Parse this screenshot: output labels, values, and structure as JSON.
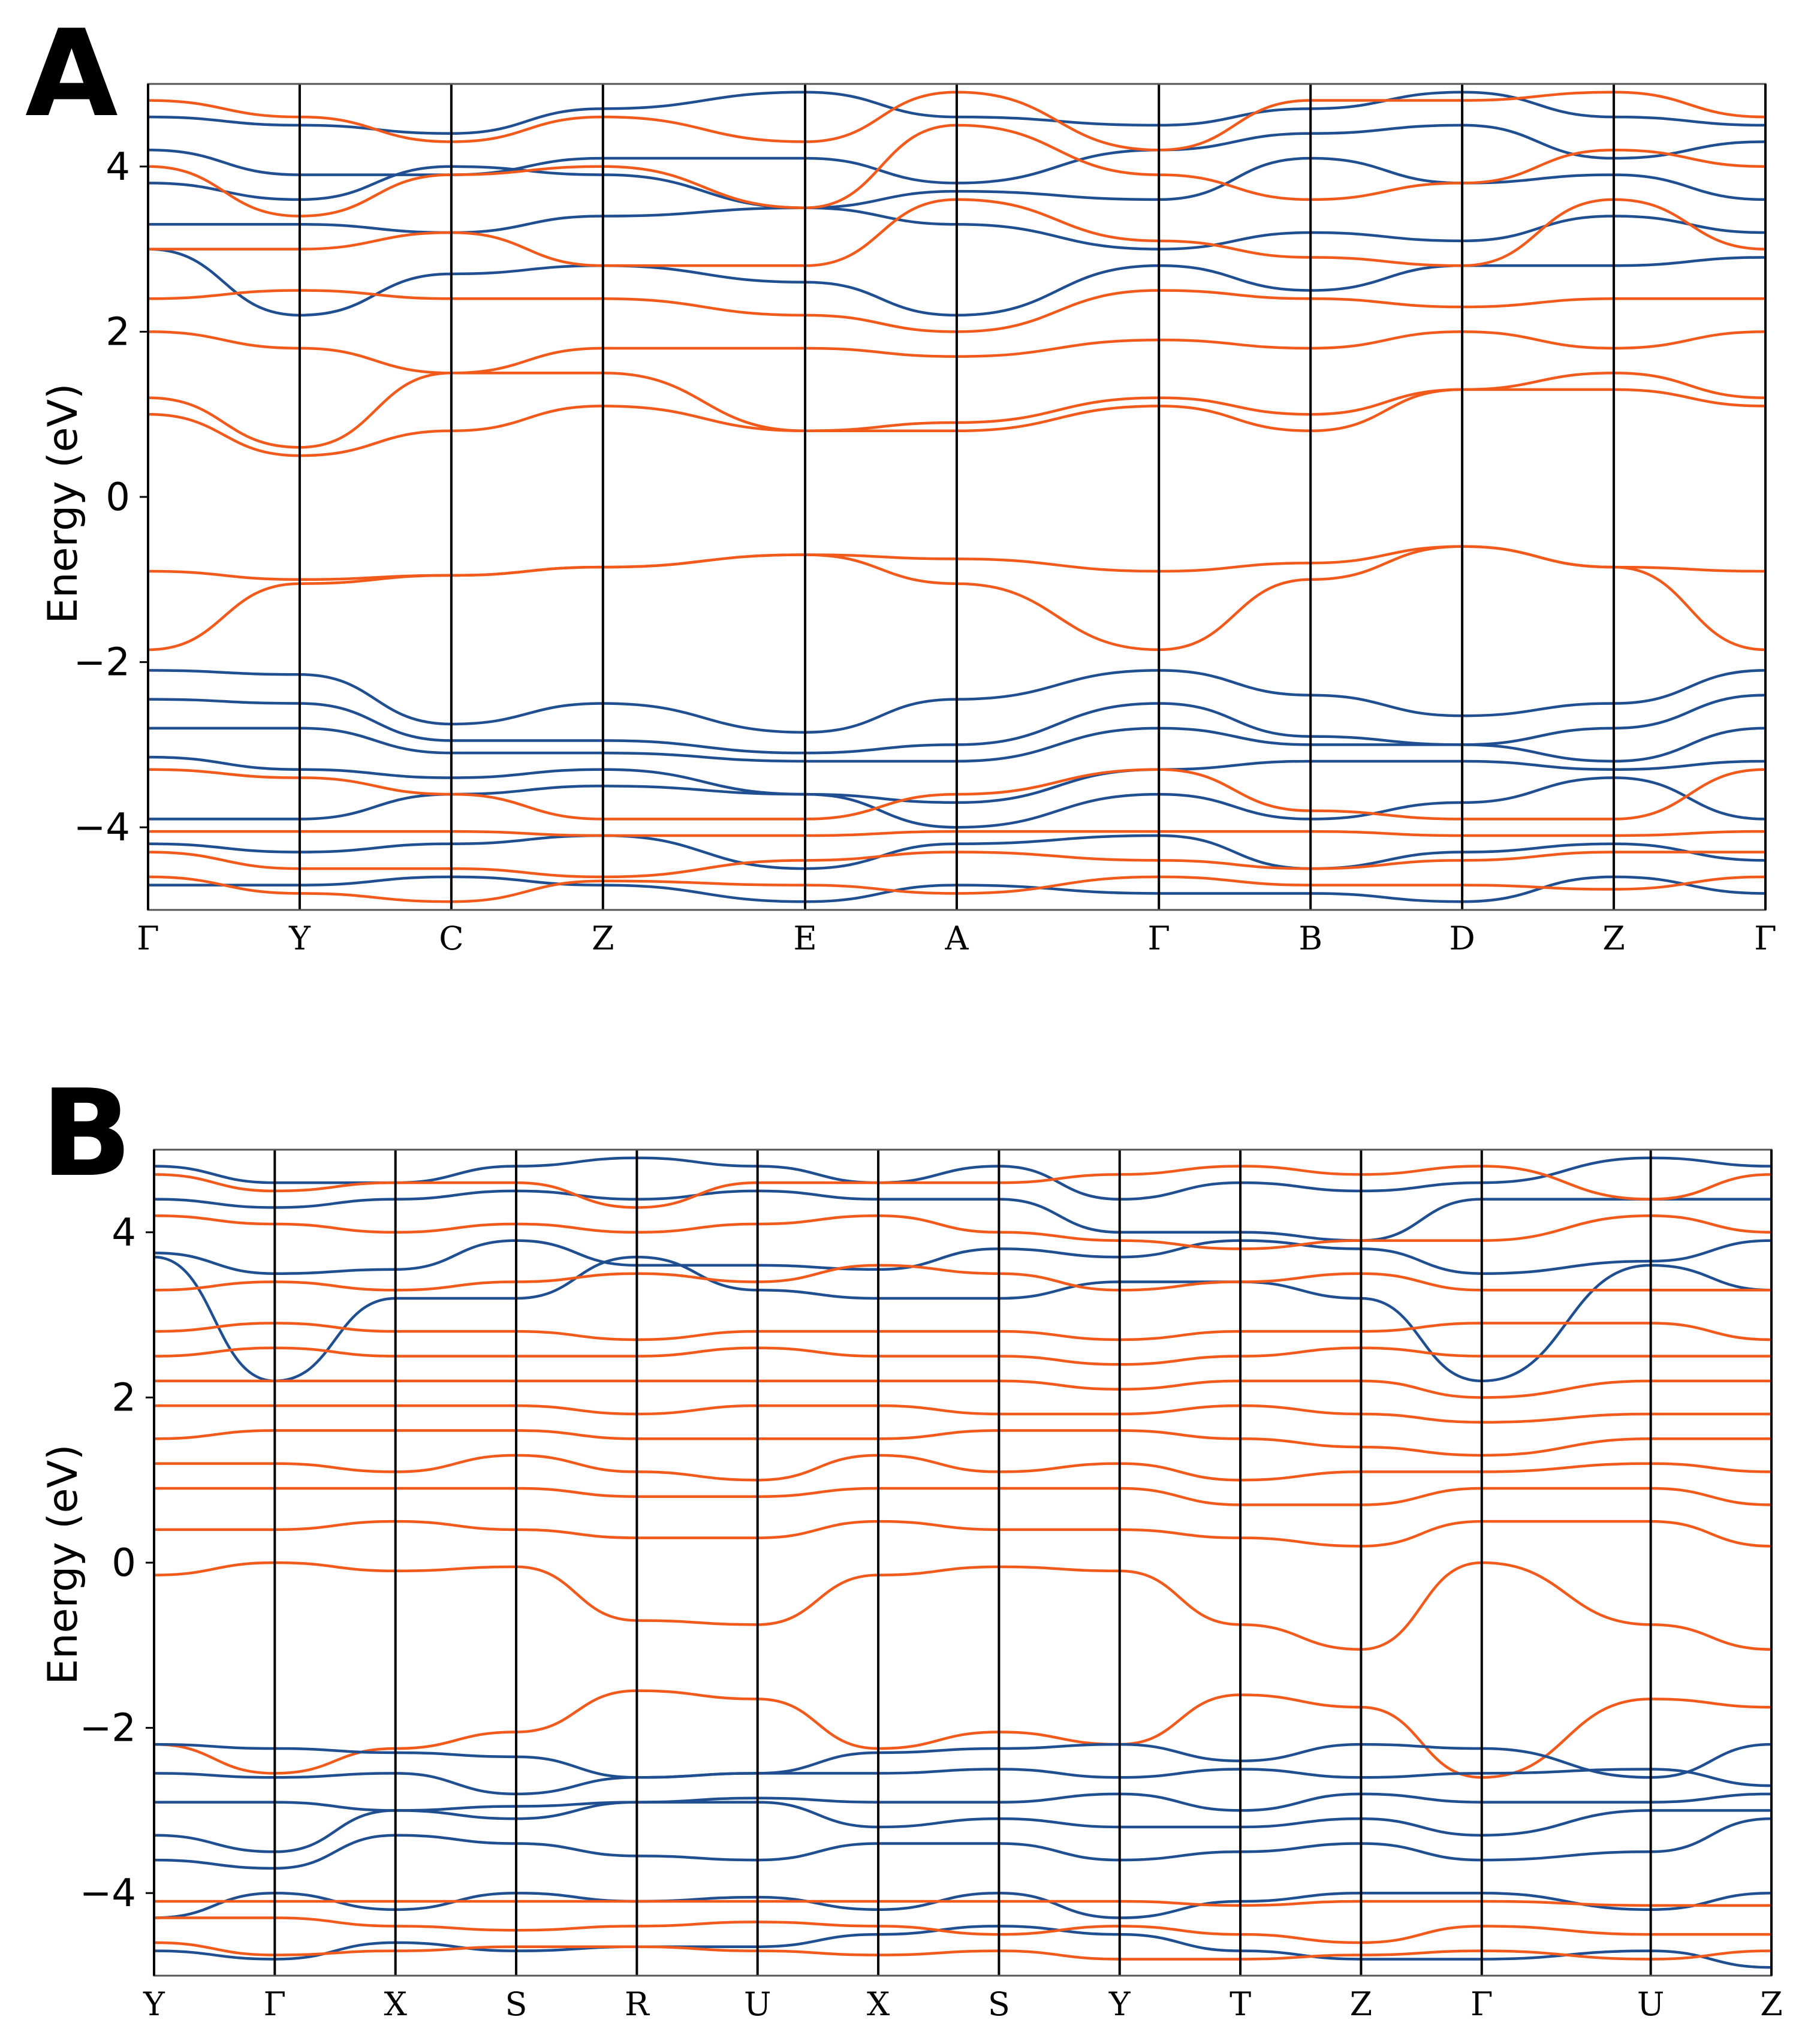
{
  "chart_data": [
    {
      "type": "line",
      "panel_label": "A",
      "ylabel": "Energy (eV)",
      "xlabel": "",
      "ylim": [
        -5,
        5
      ],
      "yticks": [
        -4,
        -2,
        0,
        2,
        4
      ],
      "ytick_labels": [
        "−4",
        "−2",
        "0",
        "2",
        "4"
      ],
      "kpoints": [
        "Γ",
        "Y",
        "C",
        "Z",
        "E",
        "A",
        "Γ",
        "B",
        "D",
        "Z",
        "Γ"
      ],
      "kpoint_x": [
        0,
        0.6,
        1.2,
        1.8,
        2.6,
        3.2,
        4.0,
        4.6,
        5.2,
        5.8,
        6.4
      ],
      "series_colors": {
        "valence": "#1f4f91",
        "conduction": "#f25a1c"
      },
      "series": [
        {
          "name": "band",
          "color": "#1f4f91",
          "values": [
            4.6,
            4.5,
            4.4,
            4.7,
            4.9,
            4.6,
            4.5,
            4.7,
            4.9,
            4.6,
            4.5
          ]
        },
        {
          "name": "band",
          "color": "#1f4f91",
          "values": [
            4.2,
            3.9,
            3.9,
            4.1,
            4.1,
            3.8,
            4.2,
            4.4,
            4.5,
            4.1,
            4.3
          ]
        },
        {
          "name": "band",
          "color": "#1f4f91",
          "values": [
            3.8,
            3.6,
            4.0,
            3.9,
            3.5,
            3.7,
            3.6,
            4.1,
            3.8,
            3.9,
            3.6
          ]
        },
        {
          "name": "band",
          "color": "#1f4f91",
          "values": [
            3.3,
            3.3,
            3.2,
            3.4,
            3.5,
            3.3,
            3.0,
            3.2,
            3.1,
            3.4,
            3.2
          ]
        },
        {
          "name": "band",
          "color": "#1f4f91",
          "values": [
            3.0,
            2.2,
            2.7,
            2.8,
            2.6,
            2.2,
            2.8,
            2.5,
            2.8,
            2.8,
            2.9
          ]
        },
        {
          "name": "band",
          "color": "#f25a1c",
          "values": [
            4.8,
            4.6,
            4.3,
            4.6,
            4.3,
            4.9,
            4.2,
            4.8,
            4.8,
            4.9,
            4.6
          ]
        },
        {
          "name": "band",
          "color": "#f25a1c",
          "values": [
            4.0,
            3.4,
            3.9,
            4.0,
            3.5,
            4.5,
            3.9,
            3.6,
            3.8,
            4.2,
            4.0
          ]
        },
        {
          "name": "band",
          "color": "#f25a1c",
          "values": [
            3.0,
            3.0,
            3.2,
            2.8,
            2.8,
            3.6,
            3.1,
            2.9,
            2.8,
            3.6,
            3.0
          ]
        },
        {
          "name": "band",
          "color": "#f25a1c",
          "values": [
            2.4,
            2.5,
            2.4,
            2.4,
            2.2,
            2.0,
            2.5,
            2.4,
            2.3,
            2.4,
            2.4
          ]
        },
        {
          "name": "band",
          "color": "#f25a1c",
          "values": [
            2.0,
            1.8,
            1.5,
            1.8,
            1.8,
            1.7,
            1.9,
            1.8,
            2.0,
            1.8,
            2.0
          ]
        },
        {
          "name": "band",
          "color": "#f25a1c",
          "values": [
            1.2,
            0.6,
            1.5,
            1.5,
            0.8,
            0.9,
            1.2,
            1.0,
            1.3,
            1.5,
            1.2
          ]
        },
        {
          "name": "band",
          "color": "#f25a1c",
          "values": [
            1.0,
            0.5,
            0.8,
            1.1,
            0.8,
            0.8,
            1.1,
            0.8,
            1.3,
            1.3,
            1.1
          ]
        },
        {
          "name": "band",
          "color": "#f25a1c",
          "values": [
            -0.9,
            -1.0,
            -0.95,
            -0.85,
            -0.7,
            -0.75,
            -0.9,
            -0.8,
            -0.6,
            -0.85,
            -0.9
          ]
        },
        {
          "name": "band",
          "color": "#f25a1c",
          "values": [
            -1.85,
            -1.05,
            -0.95,
            -0.85,
            -0.7,
            -1.05,
            -1.85,
            -1.0,
            -0.6,
            -0.85,
            -1.85
          ]
        },
        {
          "name": "band",
          "color": "#1f4f91",
          "values": [
            -2.1,
            -2.15,
            -2.75,
            -2.5,
            -2.85,
            -2.45,
            -2.1,
            -2.4,
            -2.65,
            -2.5,
            -2.1
          ]
        },
        {
          "name": "band",
          "color": "#1f4f91",
          "values": [
            -2.45,
            -2.5,
            -2.95,
            -2.95,
            -3.1,
            -3.0,
            -2.5,
            -2.9,
            -3.0,
            -2.8,
            -2.4
          ]
        },
        {
          "name": "band",
          "color": "#1f4f91",
          "values": [
            -2.8,
            -2.8,
            -3.1,
            -3.1,
            -3.2,
            -3.2,
            -2.8,
            -3.0,
            -3.0,
            -3.2,
            -2.8
          ]
        },
        {
          "name": "band",
          "color": "#1f4f91",
          "values": [
            -3.15,
            -3.3,
            -3.4,
            -3.3,
            -3.6,
            -3.7,
            -3.3,
            -3.2,
            -3.2,
            -3.3,
            -3.2
          ]
        },
        {
          "name": "band",
          "color": "#1f4f91",
          "values": [
            -3.9,
            -3.9,
            -3.6,
            -3.5,
            -3.6,
            -4.0,
            -3.6,
            -3.9,
            -3.7,
            -3.4,
            -3.9
          ]
        },
        {
          "name": "band",
          "color": "#1f4f91",
          "values": [
            -4.2,
            -4.3,
            -4.2,
            -4.1,
            -4.5,
            -4.2,
            -4.1,
            -4.5,
            -4.3,
            -4.2,
            -4.4
          ]
        },
        {
          "name": "band",
          "color": "#1f4f91",
          "values": [
            -4.7,
            -4.7,
            -4.6,
            -4.7,
            -4.9,
            -4.7,
            -4.8,
            -4.8,
            -4.9,
            -4.6,
            -4.8
          ]
        },
        {
          "name": "band",
          "color": "#f25a1c",
          "values": [
            -3.3,
            -3.4,
            -3.6,
            -3.9,
            -3.9,
            -3.6,
            -3.3,
            -3.8,
            -3.9,
            -3.9,
            -3.3
          ]
        },
        {
          "name": "band",
          "color": "#f25a1c",
          "values": [
            -4.05,
            -4.05,
            -4.05,
            -4.1,
            -4.1,
            -4.05,
            -4.05,
            -4.05,
            -4.1,
            -4.1,
            -4.05
          ]
        },
        {
          "name": "band",
          "color": "#f25a1c",
          "values": [
            -4.3,
            -4.5,
            -4.5,
            -4.6,
            -4.4,
            -4.3,
            -4.4,
            -4.5,
            -4.4,
            -4.3,
            -4.3
          ]
        },
        {
          "name": "band",
          "color": "#f25a1c",
          "values": [
            -4.6,
            -4.8,
            -4.9,
            -4.65,
            -4.7,
            -4.8,
            -4.6,
            -4.7,
            -4.7,
            -4.75,
            -4.6
          ]
        }
      ]
    },
    {
      "type": "line",
      "panel_label": "B",
      "ylabel": "Energy (eV)",
      "xlabel": "",
      "ylim": [
        -5,
        5
      ],
      "yticks": [
        -4,
        -2,
        0,
        2,
        4
      ],
      "ytick_labels": [
        "−4",
        "−2",
        "0",
        "2",
        "4"
      ],
      "kpoints": [
        "Y",
        "Γ",
        "X",
        "S",
        "R",
        "U",
        "X",
        "S",
        "Y",
        "T",
        "Z",
        "Γ",
        "U",
        "Z"
      ],
      "kpoint_x": [
        0,
        0.5,
        1.0,
        1.5,
        2.0,
        2.5,
        3.0,
        3.5,
        4.0,
        4.5,
        5.0,
        5.5,
        6.2,
        6.7
      ],
      "series_colors": {
        "valence": "#1f4f91",
        "conduction": "#f25a1c"
      },
      "series": [
        {
          "name": "band",
          "color": "#1f4f91",
          "values": [
            4.8,
            4.6,
            4.6,
            4.8,
            4.9,
            4.8,
            4.6,
            4.8,
            4.4,
            4.6,
            4.5,
            4.6,
            4.9,
            4.8
          ]
        },
        {
          "name": "band",
          "color": "#1f4f91",
          "values": [
            4.4,
            4.3,
            4.4,
            4.5,
            4.4,
            4.5,
            4.4,
            4.4,
            4.0,
            4.0,
            3.9,
            4.4,
            4.4,
            4.4
          ]
        },
        {
          "name": "band",
          "color": "#1f4f91",
          "values": [
            3.75,
            3.5,
            3.55,
            3.9,
            3.6,
            3.6,
            3.55,
            3.8,
            3.7,
            3.9,
            3.8,
            3.5,
            3.65,
            3.9
          ]
        },
        {
          "name": "band",
          "color": "#1f4f91",
          "values": [
            3.7,
            2.2,
            3.2,
            3.2,
            3.7,
            3.3,
            3.2,
            3.2,
            3.4,
            3.4,
            3.2,
            2.2,
            3.6,
            3.3
          ]
        },
        {
          "name": "band",
          "color": "#f25a1c",
          "values": [
            4.7,
            4.5,
            4.6,
            4.6,
            4.3,
            4.6,
            4.6,
            4.6,
            4.7,
            4.8,
            4.7,
            4.8,
            4.4,
            4.7
          ]
        },
        {
          "name": "band",
          "color": "#f25a1c",
          "values": [
            4.2,
            4.1,
            4.0,
            4.1,
            4.0,
            4.1,
            4.2,
            4.0,
            3.9,
            3.8,
            3.9,
            3.9,
            4.2,
            4.0
          ]
        },
        {
          "name": "band",
          "color": "#f25a1c",
          "values": [
            3.3,
            3.4,
            3.3,
            3.4,
            3.5,
            3.4,
            3.6,
            3.5,
            3.3,
            3.4,
            3.5,
            3.3,
            3.3,
            3.3
          ]
        },
        {
          "name": "band",
          "color": "#f25a1c",
          "values": [
            2.8,
            2.9,
            2.8,
            2.8,
            2.7,
            2.8,
            2.8,
            2.8,
            2.7,
            2.8,
            2.8,
            2.9,
            2.9,
            2.7
          ]
        },
        {
          "name": "band",
          "color": "#f25a1c",
          "values": [
            2.5,
            2.6,
            2.5,
            2.5,
            2.5,
            2.6,
            2.5,
            2.5,
            2.4,
            2.5,
            2.6,
            2.5,
            2.5,
            2.5
          ]
        },
        {
          "name": "band",
          "color": "#f25a1c",
          "values": [
            2.2,
            2.2,
            2.2,
            2.2,
            2.2,
            2.2,
            2.2,
            2.2,
            2.1,
            2.2,
            2.2,
            2.0,
            2.2,
            2.2
          ]
        },
        {
          "name": "band",
          "color": "#f25a1c",
          "values": [
            1.9,
            1.9,
            1.9,
            1.9,
            1.8,
            1.9,
            1.9,
            1.8,
            1.8,
            1.9,
            1.8,
            1.7,
            1.8,
            1.8
          ]
        },
        {
          "name": "band",
          "color": "#f25a1c",
          "values": [
            1.5,
            1.6,
            1.6,
            1.6,
            1.5,
            1.5,
            1.5,
            1.6,
            1.6,
            1.5,
            1.4,
            1.3,
            1.5,
            1.5
          ]
        },
        {
          "name": "band",
          "color": "#f25a1c",
          "values": [
            1.2,
            1.2,
            1.1,
            1.3,
            1.1,
            1.0,
            1.3,
            1.1,
            1.2,
            1.0,
            1.1,
            1.1,
            1.2,
            1.1
          ]
        },
        {
          "name": "band",
          "color": "#f25a1c",
          "values": [
            0.9,
            0.9,
            0.9,
            0.9,
            0.8,
            0.8,
            0.9,
            0.9,
            0.9,
            0.7,
            0.7,
            0.9,
            0.9,
            0.7
          ]
        },
        {
          "name": "band",
          "color": "#f25a1c",
          "values": [
            0.4,
            0.4,
            0.5,
            0.4,
            0.3,
            0.3,
            0.5,
            0.4,
            0.4,
            0.3,
            0.2,
            0.5,
            0.5,
            0.2
          ]
        },
        {
          "name": "band",
          "color": "#f25a1c",
          "values": [
            -0.15,
            0.0,
            -0.1,
            -0.05,
            -0.7,
            -0.75,
            -0.15,
            -0.05,
            -0.1,
            -0.75,
            -1.05,
            0.0,
            -0.75,
            -1.05
          ]
        },
        {
          "name": "band",
          "color": "#f25a1c",
          "values": [
            -2.2,
            -2.55,
            -2.25,
            -2.05,
            -1.55,
            -1.65,
            -2.25,
            -2.05,
            -2.2,
            -1.6,
            -1.75,
            -2.6,
            -1.65,
            -1.75
          ]
        },
        {
          "name": "band",
          "color": "#1f4f91",
          "values": [
            -2.2,
            -2.25,
            -2.3,
            -2.35,
            -2.6,
            -2.55,
            -2.3,
            -2.25,
            -2.2,
            -2.4,
            -2.2,
            -2.25,
            -2.6,
            -2.2
          ]
        },
        {
          "name": "band",
          "color": "#1f4f91",
          "values": [
            -2.55,
            -2.6,
            -2.55,
            -2.8,
            -2.6,
            -2.55,
            -2.55,
            -2.5,
            -2.6,
            -2.5,
            -2.6,
            -2.55,
            -2.5,
            -2.7
          ]
        },
        {
          "name": "band",
          "color": "#1f4f91",
          "values": [
            -2.9,
            -2.9,
            -3.0,
            -2.95,
            -2.9,
            -2.85,
            -2.9,
            -2.9,
            -2.8,
            -3.0,
            -2.8,
            -2.9,
            -2.9,
            -2.8
          ]
        },
        {
          "name": "band",
          "color": "#1f4f91",
          "values": [
            -3.3,
            -3.5,
            -3.0,
            -3.1,
            -2.9,
            -2.9,
            -3.2,
            -3.1,
            -3.2,
            -3.2,
            -3.1,
            -3.3,
            -3.0,
            -3.0
          ]
        },
        {
          "name": "band",
          "color": "#1f4f91",
          "values": [
            -3.6,
            -3.7,
            -3.3,
            -3.4,
            -3.55,
            -3.6,
            -3.4,
            -3.4,
            -3.6,
            -3.5,
            -3.4,
            -3.6,
            -3.5,
            -3.1
          ]
        },
        {
          "name": "band",
          "color": "#1f4f91",
          "values": [
            -4.3,
            -4.0,
            -4.2,
            -4.0,
            -4.1,
            -4.05,
            -4.2,
            -4.0,
            -4.3,
            -4.1,
            -4.0,
            -4.0,
            -4.2,
            -4.0
          ]
        },
        {
          "name": "band",
          "color": "#1f4f91",
          "values": [
            -4.7,
            -4.8,
            -4.6,
            -4.7,
            -4.65,
            -4.65,
            -4.5,
            -4.4,
            -4.5,
            -4.7,
            -4.8,
            -4.8,
            -4.7,
            -4.9
          ]
        },
        {
          "name": "band",
          "color": "#f25a1c",
          "values": [
            -4.1,
            -4.1,
            -4.1,
            -4.1,
            -4.1,
            -4.1,
            -4.1,
            -4.1,
            -4.1,
            -4.15,
            -4.1,
            -4.1,
            -4.15,
            -4.15
          ]
        },
        {
          "name": "band",
          "color": "#f25a1c",
          "values": [
            -4.3,
            -4.3,
            -4.4,
            -4.45,
            -4.4,
            -4.35,
            -4.4,
            -4.5,
            -4.4,
            -4.5,
            -4.6,
            -4.4,
            -4.5,
            -4.5
          ]
        },
        {
          "name": "band",
          "color": "#f25a1c",
          "values": [
            -4.6,
            -4.75,
            -4.7,
            -4.65,
            -4.65,
            -4.7,
            -4.75,
            -4.7,
            -4.8,
            -4.8,
            -4.75,
            -4.7,
            -4.8,
            -4.7
          ]
        }
      ]
    }
  ]
}
